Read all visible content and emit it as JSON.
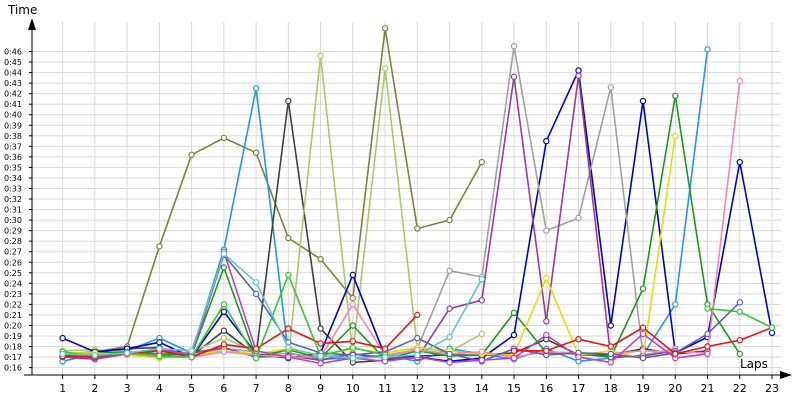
{
  "chart_data": {
    "type": "line",
    "title": "",
    "ylabel": "Time",
    "xlabel": "Laps",
    "x": [
      1,
      2,
      3,
      4,
      5,
      6,
      7,
      8,
      9,
      10,
      11,
      12,
      13,
      14,
      15,
      16,
      17,
      18,
      19,
      20,
      21,
      22,
      23
    ],
    "xlim": [
      0.05,
      23
    ],
    "ylim": [
      15.3,
      48.8
    ],
    "y_ticks": [
      16,
      17,
      18,
      19,
      20,
      21,
      22,
      23,
      24,
      25,
      26,
      27,
      28,
      29,
      30,
      31,
      32,
      33,
      34,
      35,
      36,
      37,
      38,
      39,
      40,
      41,
      42,
      43,
      44,
      45,
      46
    ],
    "y_tick_labels": [
      "0:16",
      "0:17",
      "0:18",
      "0:19",
      "0:20",
      "0:21",
      "0:22",
      "0:23",
      "0:24",
      "0:25",
      "0:26",
      "0:27",
      "0:28",
      "0:29",
      "0:30",
      "0:31",
      "0:32",
      "0:33",
      "0:34",
      "0:35",
      "0:36",
      "0:37",
      "0:38",
      "0:39",
      "0:40",
      "0:41",
      "0:42",
      "0:43",
      "0:44",
      "0:45",
      "0:46"
    ],
    "x_tick_labels": [
      "1",
      "2",
      "3",
      "4",
      "5",
      "6",
      "7",
      "8",
      "9",
      "10",
      "11",
      "12",
      "13",
      "14",
      "15",
      "16",
      "17",
      "18",
      "19",
      "20",
      "21",
      "22",
      "23"
    ],
    "grid": true,
    "legend": "none",
    "series": [
      {
        "color": "#808040",
        "values": [
          17.3,
          17.5,
          18.0,
          27.5,
          36.2,
          37.8,
          36.4,
          28.3,
          26.3,
          22.6,
          48.2,
          29.2,
          30.0,
          35.5,
          null,
          null,
          null,
          null,
          null,
          null,
          null,
          null,
          null
        ]
      },
      {
        "color": "#1a9ae6",
        "values": [
          16.6,
          17.3,
          17.6,
          18.8,
          17.4,
          27.2,
          42.5,
          17.4,
          16.8,
          16.9,
          17.2,
          16.6,
          17.8,
          17.3,
          16.8,
          17.8,
          16.6,
          16.9,
          17.2,
          22.0,
          46.2,
          null,
          null
        ]
      },
      {
        "color": "#404040",
        "values": [
          17.1,
          17.4,
          17.8,
          17.9,
          17.1,
          19.5,
          17.2,
          41.3,
          19.7,
          16.5,
          16.7,
          17.1,
          17.2,
          17.2,
          17.4,
          18.7,
          17.2,
          17.2,
          17.8,
          17.3,
          17.6,
          null,
          null
        ]
      },
      {
        "color": "#a8c86a",
        "values": [
          17.6,
          17.7,
          17.5,
          17.2,
          17.5,
          18.8,
          17.5,
          17.0,
          45.6,
          17.4,
          44.4,
          17.9,
          17.5,
          19.2,
          null,
          null,
          null,
          null,
          null,
          null,
          null,
          null,
          null
        ]
      },
      {
        "color": "#0000cc",
        "values": [
          18.8,
          17.5,
          17.8,
          18.4,
          17.0,
          21.3,
          17.3,
          16.9,
          17.4,
          24.8,
          17.1,
          17.0,
          16.6,
          16.9,
          19.1,
          37.5,
          44.2,
          20.0,
          41.3,
          17.4,
          18.9,
          35.5,
          19.3
        ]
      },
      {
        "color": "#a0a0a0",
        "values": [
          17.2,
          17.4,
          17.2,
          17.6,
          17.3,
          17.8,
          17.5,
          17.3,
          17.0,
          17.3,
          17.0,
          17.8,
          25.2,
          24.6,
          46.5,
          29.0,
          30.2,
          42.6,
          17.2,
          17.8,
          null,
          null,
          null
        ]
      },
      {
        "color": "#9a3a9a",
        "values": [
          17.0,
          16.8,
          17.3,
          17.1,
          17.4,
          17.9,
          17.0,
          17.1,
          16.7,
          17.3,
          16.9,
          16.9,
          21.6,
          22.4,
          43.6,
          20.4,
          43.7,
          17.0,
          17.1,
          17.6,
          null,
          null,
          null
        ]
      },
      {
        "color": "#1a9a1a",
        "values": [
          17.0,
          17.3,
          17.5,
          17.3,
          17.2,
          25.5,
          17.0,
          17.7,
          16.9,
          20.0,
          16.8,
          17.6,
          17.1,
          17.2,
          21.2,
          17.4,
          17.3,
          17.0,
          23.5,
          41.8,
          22.0,
          17.3,
          null
        ]
      },
      {
        "color": "#e0e000",
        "values": [
          17.4,
          17.4,
          17.2,
          16.9,
          17.2,
          17.6,
          17.3,
          17.8,
          17.2,
          17.8,
          17.4,
          17.9,
          17.6,
          17.3,
          17.2,
          24.5,
          17.2,
          17.6,
          16.9,
          38.0,
          null,
          null,
          null
        ]
      },
      {
        "color": "#f088a8",
        "values": [
          17.2,
          17.1,
          17.4,
          17.0,
          17.0,
          17.5,
          17.2,
          17.0,
          17.0,
          22.0,
          17.2,
          17.7,
          17.3,
          17.5,
          17.0,
          17.5,
          17.4,
          17.3,
          17.6,
          17.5,
          17.4,
          43.2,
          null
        ]
      },
      {
        "color": "#6060b0",
        "values": [
          17.2,
          17.1,
          17.4,
          17.6,
          17.2,
          26.7,
          23.0,
          18.4,
          17.4,
          17.2,
          17.5,
          18.8,
          17.3,
          16.6,
          17.8,
          17.2,
          17.4,
          17.3,
          16.9,
          17.4,
          19.2,
          22.2,
          null
        ]
      },
      {
        "color": "#c040c0",
        "values": [
          17.1,
          16.9,
          17.3,
          17.8,
          17.2,
          27.0,
          17.6,
          17.0,
          16.4,
          16.9,
          16.6,
          17.0,
          16.5,
          16.7,
          16.9,
          19.1,
          17.0,
          16.5,
          19.2,
          16.9,
          17.3,
          null,
          null
        ]
      },
      {
        "color": "#ee1111",
        "values": [
          17.1,
          17.0,
          17.4,
          17.6,
          17.0,
          18.2,
          17.8,
          19.7,
          18.3,
          18.5,
          17.8,
          21.0,
          null,
          null,
          17.6,
          17.6,
          18.7,
          18.0,
          19.8,
          17.3,
          18.0,
          18.6,
          19.8
        ]
      },
      {
        "color": "#30c830",
        "values": [
          17.5,
          17.1,
          17.4,
          17.1,
          17.0,
          22.0,
          16.9,
          24.8,
          17.1,
          17.9,
          17.2,
          null,
          null,
          null,
          null,
          null,
          null,
          null,
          null,
          null,
          21.6,
          21.3,
          19.8
        ]
      },
      {
        "color": "#58c8c8",
        "values": [
          17.3,
          17.2,
          17.4,
          17.8,
          17.6,
          26.8,
          24.1,
          17.9,
          17.1,
          16.9,
          17.0,
          17.2,
          18.9,
          24.4,
          null,
          null,
          null,
          null,
          null,
          null,
          null,
          null,
          null
        ]
      }
    ]
  }
}
